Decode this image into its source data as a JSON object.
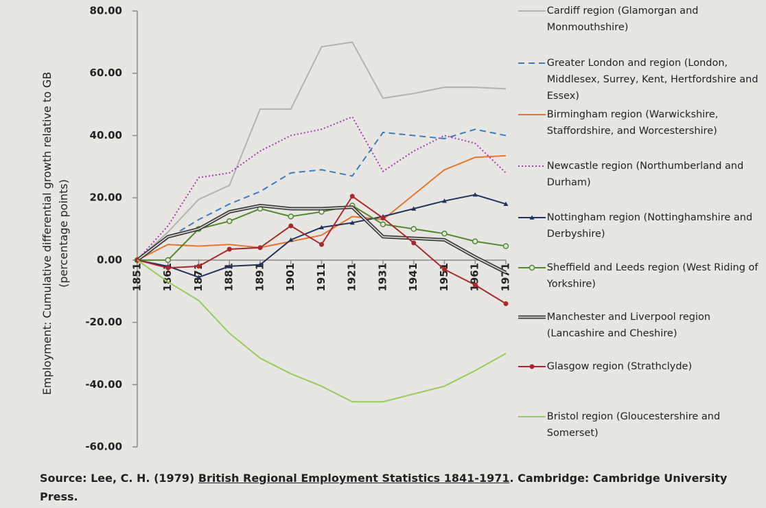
{
  "chart_data": {
    "type": "line",
    "y_label": "Employment: Cumulative differential growth relative to GB (percentage points)",
    "categories": [
      "1851",
      "1861",
      "1871",
      "1881",
      "1891",
      "1901",
      "1911",
      "1921",
      "1931",
      "1941",
      "1951",
      "1961",
      "1971"
    ],
    "ylim": [
      -60,
      80
    ],
    "yticks": [
      {
        "value": -60,
        "label": "-60.00"
      },
      {
        "value": -40,
        "label": "-40.00"
      },
      {
        "value": -20,
        "label": "-20.00"
      },
      {
        "value": 0,
        "label": "0.00"
      },
      {
        "value": 20,
        "label": "20.00"
      },
      {
        "value": 40,
        "label": "40.00"
      },
      {
        "value": 60,
        "label": "60.00"
      },
      {
        "value": 80,
        "label": "80.00"
      }
    ],
    "grid": false,
    "legend": "right",
    "series": [
      {
        "name": "Cardiff region (Glamorgan and Monmouthshire)",
        "color": "#b4b2b0",
        "line_style": "solid",
        "marker": "none",
        "values": [
          0,
          9,
          19.5,
          24,
          48.5,
          48.5,
          68.5,
          70,
          52,
          53.5,
          55.5,
          55.5,
          55
        ]
      },
      {
        "name": "Greater London and region (London, Middlesex, Surrey, Kent, Hertfordshire and Essex)",
        "color": "#3a7cc0",
        "line_style": "dashed",
        "marker": "none",
        "values": [
          0,
          7,
          13,
          18,
          22,
          28,
          29,
          27,
          41,
          40,
          39,
          42,
          40
        ]
      },
      {
        "name": "Birmingham region (Warwickshire, Staffordshire, and Worcestershire)",
        "color": "#e8742a",
        "line_style": "solid",
        "marker": "none",
        "values": [
          0,
          5,
          4.5,
          5,
          4,
          6,
          8,
          14,
          13,
          21,
          29,
          33,
          33.5
        ]
      },
      {
        "name": "Newcastle region (Northumberland and Durham)",
        "color": "#a43aa8",
        "line_style": "dotted",
        "marker": "none",
        "values": [
          0,
          11,
          26.5,
          28,
          35,
          40,
          42,
          46,
          28.5,
          35,
          40,
          37.5,
          28
        ]
      },
      {
        "name": "Nottingham region (Nottinghamshire and Derbyshire)",
        "color": "#23325e",
        "line_style": "solid",
        "marker": "triangle",
        "values": [
          0,
          -2,
          -5.5,
          -2,
          -1.5,
          6.5,
          10.5,
          12,
          14,
          16.5,
          19,
          21,
          18
        ]
      },
      {
        "name": "Sheffield and Leeds region (West Riding of Yorkshire)",
        "color": "#4f8a2a",
        "line_style": "solid",
        "marker": "circle-open",
        "values": [
          0,
          0,
          10,
          12.5,
          16.5,
          14,
          15.5,
          17.5,
          11.5,
          10,
          8.5,
          6,
          4.5
        ]
      },
      {
        "name": "Manchester and Liverpool region (Lancashire and Cheshire)",
        "color": "#3d3d3d",
        "line_style": "double",
        "marker": "none",
        "values": [
          0,
          7.5,
          10,
          15.5,
          17.5,
          16.5,
          16.5,
          17,
          7.5,
          7,
          6.5,
          1,
          -4
        ]
      },
      {
        "name": "Glasgow region (Strathclyde)",
        "color": "#a8282c",
        "line_style": "solid",
        "marker": "circle",
        "values": [
          0,
          -2.5,
          -2,
          3.5,
          4,
          11,
          5,
          20.5,
          13.5,
          5.5,
          -3,
          -8,
          -14
        ]
      },
      {
        "name": "Bristol region (Gloucestershire and Somerset)",
        "color": "#98cc58",
        "line_style": "solid",
        "marker": "none",
        "values": [
          0,
          -7,
          -13,
          -23.5,
          -31.5,
          -36.5,
          -40.5,
          -45.5,
          -45.5,
          -43,
          -40.5,
          -35.5,
          -30
        ]
      }
    ],
    "source": {
      "prefix": "Source: Lee, C. H. (1979)",
      "title": "British Regional Employment Statistics 1841-1971",
      "suffix": ". Cambridge: Cambridge University Press."
    }
  }
}
